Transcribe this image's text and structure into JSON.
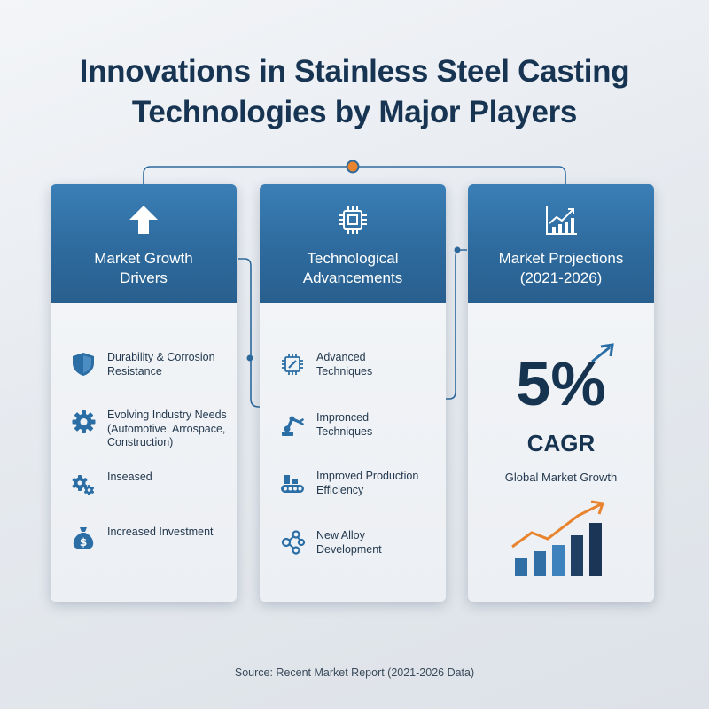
{
  "title": {
    "line1": "Innovations in Stainless Steel Casting",
    "line2": "Technologies by Major Players"
  },
  "colors": {
    "header_blue": "#2e6a9d",
    "navy": "#163350",
    "accent_orange": "#e8832e",
    "icon_blue": "#2b6ea6"
  },
  "cards": {
    "drivers": {
      "icon": "arrow-up-icon",
      "title_line1": "Market Growth",
      "title_line2": "Drivers",
      "items": [
        {
          "icon": "shield-icon",
          "line1": "Durability & Corrosion",
          "line2": "Resistance",
          "line3": ""
        },
        {
          "icon": "gear-icon",
          "line1": "Evolving Industry Needs",
          "line2": "(Automotive, Arrospace,",
          "line3": "Construction)"
        },
        {
          "icon": "gears-icon",
          "line1": "Inseased",
          "line2": "",
          "line3": ""
        },
        {
          "icon": "money-bag-icon",
          "line1": "Increased Investment",
          "line2": "",
          "line3": ""
        }
      ]
    },
    "tech": {
      "icon": "chip-icon",
      "title_line1": "Technological",
      "title_line2": "Advancements",
      "items": [
        {
          "icon": "chip-icon",
          "line1": "Advanced",
          "line2": "Techniques"
        },
        {
          "icon": "robot-arm-icon",
          "line1": "Impronced",
          "line2": "Techniques"
        },
        {
          "icon": "conveyor-icon",
          "line1": "Improved Production",
          "line2": "Efficiency"
        },
        {
          "icon": "molecule-icon",
          "line1": "New Alloy",
          "line2": "Development"
        }
      ]
    },
    "projections": {
      "icon": "bar-chart-icon",
      "title_line1": "Market Projections",
      "title_line2": "(2021-2026)",
      "cagr_value": "5%",
      "cagr_label": "CAGR",
      "caption": "Global Market Growth"
    }
  },
  "source": "Source: Recent Market Report (2021-2026 Data)"
}
